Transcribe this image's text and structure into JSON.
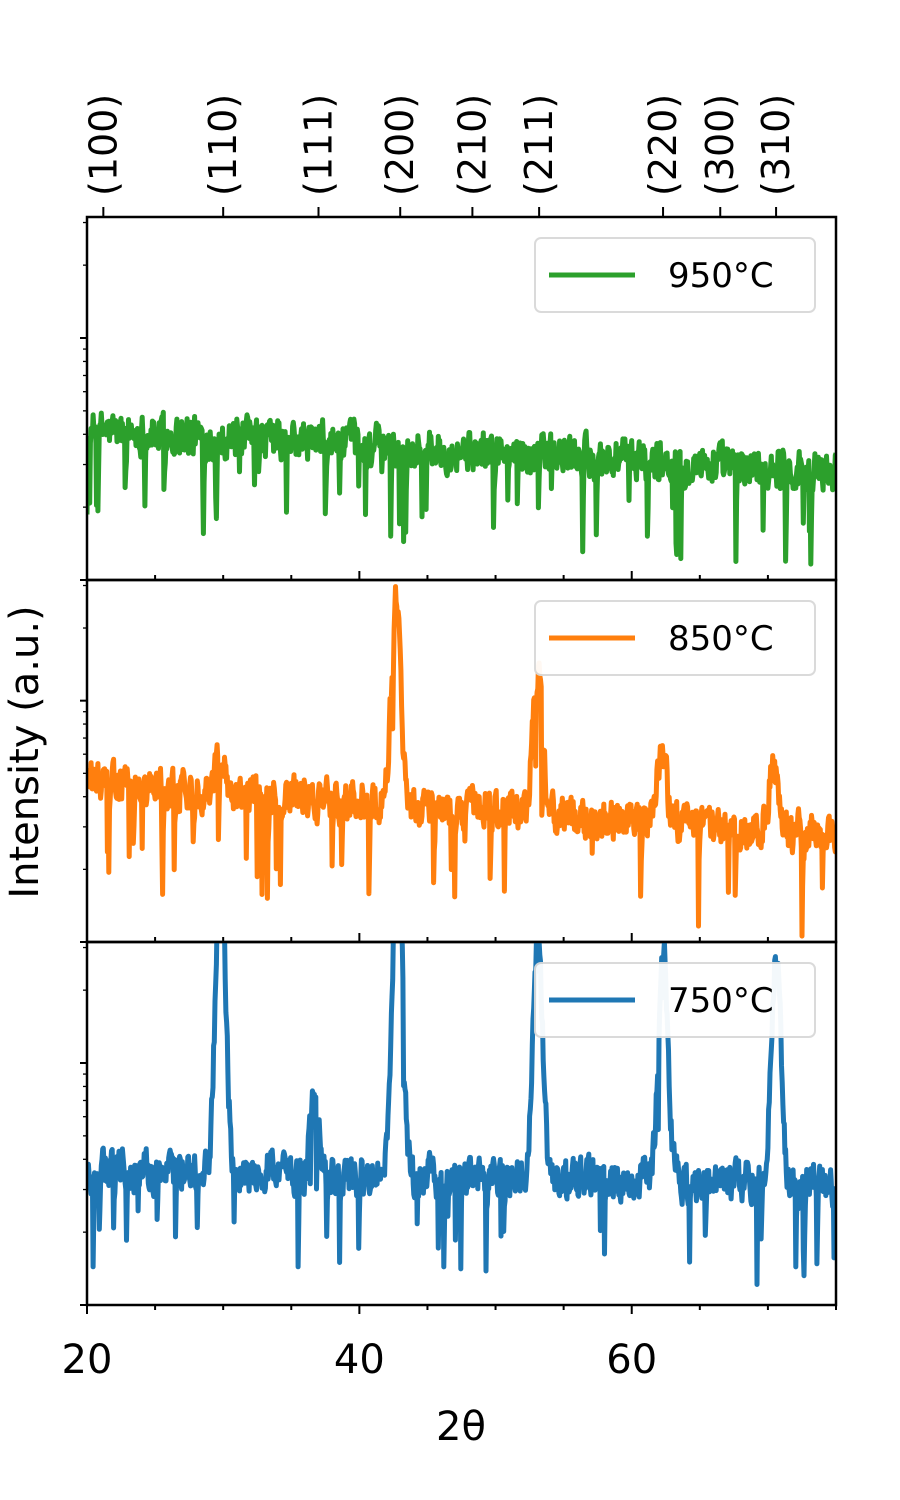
{
  "chart_data": {
    "type": "line",
    "xlabel": "2θ",
    "ylabel": "Intensity (a.u.)",
    "xlim": [
      20,
      75
    ],
    "yscale": "log",
    "x_ticks": [
      20,
      40,
      60
    ],
    "grid": false,
    "top_axis": {
      "labels": [
        "(100)",
        "(110)",
        "(111)",
        "(200)",
        "(210)",
        "(211)",
        "(220)",
        "(300)",
        "(310)"
      ],
      "positions_2theta": [
        21.2,
        30.0,
        37.0,
        43.0,
        48.3,
        53.2,
        62.3,
        66.5,
        70.6
      ]
    },
    "panels": [
      {
        "name": "950°C",
        "color": "#2ca02c",
        "legend_position": "top-right",
        "baseline": {
          "x": [
            20,
            75
          ],
          "y_log": [
            0.62,
            0.45
          ]
        },
        "noise_log_amplitude": 0.12,
        "peaks": []
      },
      {
        "name": "850°C",
        "color": "#ff7f0e",
        "legend_position": "top-right",
        "baseline": {
          "x": [
            20,
            75
          ],
          "y_log": [
            0.66,
            0.44
          ]
        },
        "noise_log_amplitude": 0.12,
        "peaks": [
          {
            "x": 29.8,
            "height_log": 0.15,
            "width": 0.4
          },
          {
            "x": 42.7,
            "height_log": 0.85,
            "width": 0.35
          },
          {
            "x": 53.1,
            "height_log": 0.62,
            "width": 0.35
          },
          {
            "x": 62.2,
            "height_log": 0.32,
            "width": 0.35
          },
          {
            "x": 70.4,
            "height_log": 0.25,
            "width": 0.35
          }
        ]
      },
      {
        "name": "750°C",
        "color": "#1f77b4",
        "legend_position": "top-right",
        "baseline": {
          "x": [
            20,
            75
          ],
          "y_log": [
            0.56,
            0.5
          ]
        },
        "noise_log_amplitude": 0.12,
        "peaks": [
          {
            "x": 29.8,
            "height_log": 1.35,
            "width": 0.35
          },
          {
            "x": 36.7,
            "height_log": 0.3,
            "width": 0.3
          },
          {
            "x": 42.8,
            "height_log": 1.45,
            "width": 0.35
          },
          {
            "x": 53.1,
            "height_log": 1.0,
            "width": 0.35
          },
          {
            "x": 62.3,
            "height_log": 1.0,
            "width": 0.35
          },
          {
            "x": 70.6,
            "height_log": 0.95,
            "width": 0.35
          }
        ]
      }
    ]
  }
}
